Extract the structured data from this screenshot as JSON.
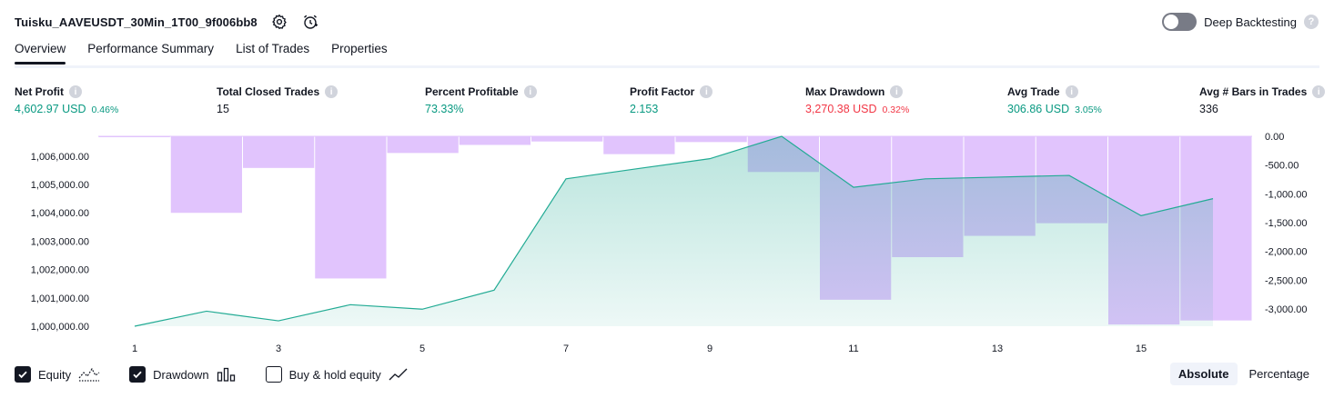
{
  "header": {
    "strategy_title": "Tuisku_AAVEUSDT_30Min_1T00_9f006bb8",
    "deep_backtesting_label": "Deep Backtesting",
    "deep_backtesting_enabled": false,
    "help_glyph": "?"
  },
  "tabs": [
    {
      "label": "Overview",
      "active": true
    },
    {
      "label": "Performance Summary",
      "active": false
    },
    {
      "label": "List of Trades",
      "active": false
    },
    {
      "label": "Properties",
      "active": false
    }
  ],
  "metrics": [
    {
      "label": "Net Profit",
      "value": "4,602.97 USD",
      "pct": "0.46%",
      "tone": "pos"
    },
    {
      "label": "Total Closed Trades",
      "value": "15",
      "pct": "",
      "tone": "neutral"
    },
    {
      "label": "Percent Profitable",
      "value": "73.33%",
      "pct": "",
      "tone": "pos"
    },
    {
      "label": "Profit Factor",
      "value": "2.153",
      "pct": "",
      "tone": "pos"
    },
    {
      "label": "Max Drawdown",
      "value": "3,270.38 USD",
      "pct": "0.32%",
      "tone": "neg"
    },
    {
      "label": "Avg Trade",
      "value": "306.86 USD",
      "pct": "3.05%",
      "tone": "pos"
    },
    {
      "label": "Avg # Bars in Trades",
      "value": "336",
      "pct": "",
      "tone": "neutral"
    }
  ],
  "chart_data": {
    "type": "area",
    "x": [
      1,
      2,
      3,
      4,
      5,
      6,
      7,
      8,
      9,
      10,
      11,
      12,
      13,
      14,
      15,
      16
    ],
    "xticks": [
      "1",
      "3",
      "5",
      "7",
      "9",
      "11",
      "13",
      "15"
    ],
    "left_axis": {
      "ticks": [
        "1,006,000.00",
        "1,005,000.00",
        "1,004,000.00",
        "1,003,000.00",
        "1,002,000.00",
        "1,001,000.00",
        "1,000,000.00"
      ],
      "ylim": [
        1000000,
        1006700
      ]
    },
    "right_axis": {
      "ticks": [
        "0.00",
        "-500.00",
        "-1,000.00",
        "-1,500.00",
        "-2,000.00",
        "-2,500.00",
        "-3,000.00"
      ],
      "ylim": [
        -3300,
        0
      ]
    },
    "series": [
      {
        "name": "Equity",
        "axis": "left",
        "values": [
          1000000,
          1000530,
          1000190,
          1000760,
          1000600,
          1001270,
          1005200,
          1005560,
          1005910,
          1006700,
          1004900,
          1005200,
          1005260,
          1005320,
          1003900,
          1004500
        ]
      },
      {
        "name": "Drawdown",
        "axis": "right",
        "values": [
          -10,
          -1330,
          -550,
          -2470,
          -290,
          -150,
          -90,
          -310,
          -100,
          -620,
          -2840,
          -2100,
          -1730,
          -1510,
          -3270,
          -3200
        ]
      }
    ],
    "colors": {
      "equity_line": "#22ab94",
      "equity_fill": "#22ab94",
      "drawdown": "#e1c4fd"
    }
  },
  "legend": [
    {
      "label": "Equity",
      "checked": true,
      "icon": "equity-line-icon"
    },
    {
      "label": "Drawdown",
      "checked": true,
      "icon": "drawdown-bars-icon"
    },
    {
      "label": "Buy & hold equity",
      "checked": false,
      "icon": "buy-hold-line-icon"
    }
  ],
  "modes": [
    {
      "label": "Absolute",
      "active": true
    },
    {
      "label": "Percentage",
      "active": false
    }
  ]
}
